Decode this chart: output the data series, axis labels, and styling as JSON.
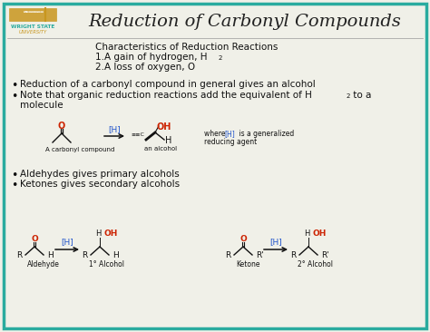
{
  "title": "Reduction of Carbonyl Compounds",
  "border_color": "#2aab9f",
  "background_color": "#f0f0e8",
  "title_color": "#222222",
  "red_color": "#cc2200",
  "blue_color": "#2255cc",
  "black_color": "#111111",
  "wsu_green": "#2aab9f",
  "wsu_gold": "#c8961e",
  "characteristics_header": "Characteristics of Reduction Reactions",
  "char1": "1.A gain of hydrogen, H",
  "char2": "2.A loss of oxygen, O",
  "bullet1": "Reduction of a carbonyl compound in general gives an alcohol",
  "bullet2a": "Note that organic reduction reactions add the equivalent of H",
  "bullet2b": " to a",
  "bullet2c": "molecule",
  "bullet3": "Aldehydes gives primary alcohols",
  "bullet4": "Ketones gives secondary alcohols",
  "label_carbonyl": "A carbonyl compound",
  "label_alcohol": "an alcohol",
  "label_aldehyde": "Aldehyde",
  "label_1alcohol": "1° Alcohol",
  "label_ketone": "Ketone",
  "label_2alcohol": "2° Alcohol"
}
